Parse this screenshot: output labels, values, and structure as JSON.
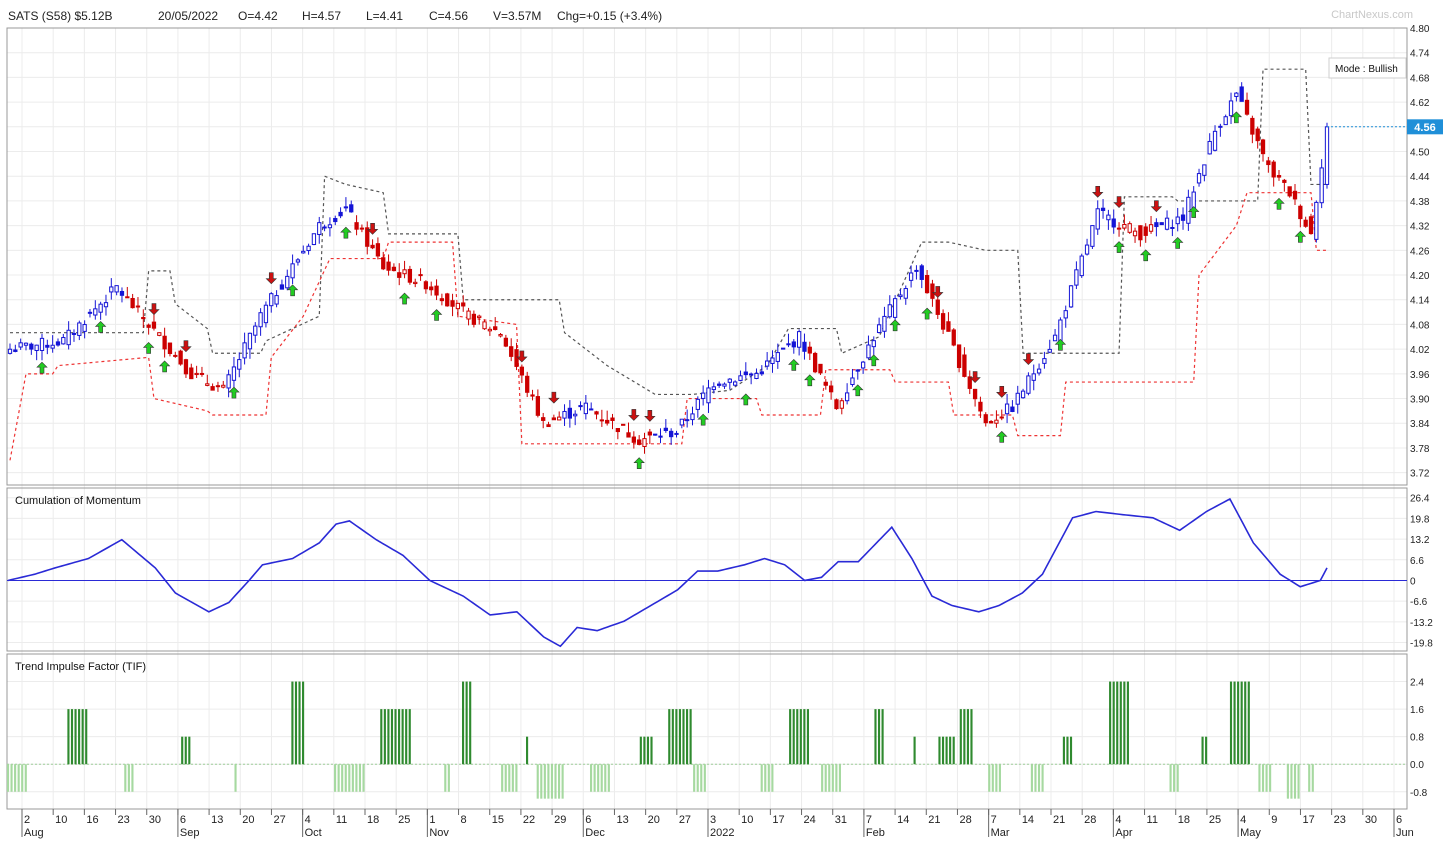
{
  "header": {
    "symbol": "SATS (S58) $5.12B",
    "date": "20/05/2022",
    "open": "O=4.42",
    "high": "H=4.57",
    "low": "L=4.41",
    "close": "C=4.56",
    "volume": "V=3.57M",
    "change": "Chg=+0.15 (+3.4%)",
    "brand": "ChartNexus.com"
  },
  "price_panel": {
    "mode_label": "Mode : Bullish",
    "last_price": "4.56",
    "y_ticks": [
      "4.80",
      "4.74",
      "4.68",
      "4.62",
      "4.56",
      "4.50",
      "4.44",
      "4.38",
      "4.32",
      "4.26",
      "4.20",
      "4.14",
      "4.08",
      "4.02",
      "3.96",
      "3.90",
      "3.84",
      "3.78",
      "3.72"
    ]
  },
  "momentum_panel": {
    "title": "Cumulation of Momentum",
    "y_ticks": [
      "26.4",
      "19.8",
      "13.2",
      "6.6",
      "0",
      "-6.6",
      "-13.2",
      "-19.8"
    ]
  },
  "tif_panel": {
    "title": "Trend Impulse Factor (TIF)",
    "y_ticks": [
      "2.4",
      "1.6",
      "0.8",
      "0.0",
      "-0.8"
    ]
  },
  "x_axis": {
    "day_labels": [
      "2",
      "10",
      "16",
      "23",
      "30",
      "6",
      "13",
      "20",
      "27",
      "4",
      "11",
      "18",
      "25",
      "1",
      "8",
      "15",
      "22",
      "29",
      "6",
      "13",
      "20",
      "27",
      "3",
      "10",
      "17",
      "24",
      "31",
      "7",
      "14",
      "21",
      "28",
      "7",
      "14",
      "21",
      "28",
      "4",
      "11",
      "18",
      "25",
      "4",
      "9",
      "17",
      "23",
      "30",
      "6"
    ],
    "month_labels": [
      "Aug",
      "Sep",
      "Oct",
      "Nov",
      "Dec",
      "2022",
      "Feb",
      "Mar",
      "Apr",
      "May",
      "Jun"
    ]
  },
  "colors": {
    "up_candle": "#1515d6",
    "down_candle": "#cc0000",
    "resistance_line": "#555555",
    "support_line": "#ee3333",
    "buy_arrow": "#22cc22",
    "sell_arrow": "#cc1111",
    "momentum_line": "#2a2ad6",
    "tif_positive": "#2f8a2f",
    "tif_negative": "#a6d9a0",
    "price_tag": "#1f8fd8"
  },
  "chart_data": {
    "type": "candlestick",
    "title": "SATS (S58) $5.12B",
    "date_range": [
      "2021-08-02",
      "2022-05-20"
    ],
    "price": {
      "ylim": [
        3.69,
        4.8
      ],
      "first_close": 4.02,
      "last_close": 4.56,
      "waypoints": [
        [
          0,
          4.02
        ],
        [
          10,
          4.04
        ],
        [
          20,
          4.17
        ],
        [
          26,
          4.08
        ],
        [
          34,
          3.96
        ],
        [
          40,
          3.92
        ],
        [
          47,
          4.1
        ],
        [
          52,
          4.2
        ],
        [
          58,
          4.32
        ],
        [
          63,
          4.36
        ],
        [
          70,
          4.22
        ],
        [
          78,
          4.18
        ],
        [
          86,
          4.1
        ],
        [
          92,
          4.06
        ],
        [
          100,
          3.84
        ],
        [
          108,
          3.88
        ],
        [
          118,
          3.8
        ],
        [
          125,
          3.82
        ],
        [
          132,
          3.94
        ],
        [
          140,
          3.96
        ],
        [
          148,
          4.05
        ],
        [
          155,
          3.88
        ],
        [
          162,
          4.05
        ],
        [
          170,
          4.22
        ],
        [
          176,
          4.05
        ],
        [
          183,
          3.84
        ],
        [
          188,
          3.88
        ],
        [
          196,
          4.05
        ],
        [
          204,
          4.35
        ],
        [
          212,
          4.3
        ],
        [
          220,
          4.34
        ],
        [
          226,
          4.55
        ],
        [
          230,
          4.64
        ],
        [
          236,
          4.46
        ],
        [
          240,
          4.4
        ],
        [
          244,
          4.3
        ],
        [
          247,
          4.56
        ]
      ],
      "resistance": [
        [
          0,
          4.06
        ],
        [
          25,
          4.06
        ],
        [
          26,
          4.21
        ],
        [
          30,
          4.21
        ],
        [
          31,
          4.13
        ],
        [
          37,
          4.07
        ],
        [
          38,
          4.01
        ],
        [
          47,
          4.01
        ],
        [
          48,
          4.04
        ],
        [
          58,
          4.1
        ],
        [
          59,
          4.44
        ],
        [
          63,
          4.42
        ],
        [
          70,
          4.4
        ],
        [
          71,
          4.3
        ],
        [
          84,
          4.3
        ],
        [
          85,
          4.14
        ],
        [
          103,
          4.14
        ],
        [
          104,
          4.06
        ],
        [
          112,
          3.98
        ],
        [
          121,
          3.91
        ],
        [
          128,
          3.91
        ],
        [
          135,
          3.92
        ],
        [
          142,
          3.98
        ],
        [
          146,
          4.07
        ],
        [
          155,
          4.07
        ],
        [
          156,
          4.01
        ],
        [
          163,
          4.05
        ],
        [
          171,
          4.28
        ],
        [
          176,
          4.28
        ],
        [
          183,
          4.26
        ],
        [
          189,
          4.26
        ],
        [
          190,
          4.01
        ],
        [
          208,
          4.01
        ],
        [
          209,
          4.39
        ],
        [
          218,
          4.39
        ],
        [
          219,
          4.38
        ],
        [
          234,
          4.38
        ],
        [
          235,
          4.7
        ],
        [
          243,
          4.7
        ],
        [
          244,
          4.42
        ],
        [
          247,
          4.42
        ]
      ],
      "support": [
        [
          0,
          3.75
        ],
        [
          3,
          3.96
        ],
        [
          8,
          3.96
        ],
        [
          9,
          3.98
        ],
        [
          26,
          4.0
        ],
        [
          27,
          3.9
        ],
        [
          37,
          3.87
        ],
        [
          38,
          3.86
        ],
        [
          48,
          3.86
        ],
        [
          49,
          4.0
        ],
        [
          55,
          4.1
        ],
        [
          60,
          4.24
        ],
        [
          70,
          4.24
        ],
        [
          71,
          4.28
        ],
        [
          83,
          4.28
        ],
        [
          84,
          4.1
        ],
        [
          95,
          4.08
        ],
        [
          96,
          3.79
        ],
        [
          113,
          3.79
        ],
        [
          114,
          3.79
        ],
        [
          126,
          3.79
        ],
        [
          127,
          3.9
        ],
        [
          140,
          3.9
        ],
        [
          141,
          3.86
        ],
        [
          152,
          3.86
        ],
        [
          153,
          3.97
        ],
        [
          165,
          3.97
        ],
        [
          166,
          3.94
        ],
        [
          176,
          3.94
        ],
        [
          177,
          3.86
        ],
        [
          188,
          3.86
        ],
        [
          189,
          3.81
        ],
        [
          197,
          3.81
        ],
        [
          198,
          3.94
        ],
        [
          222,
          3.94
        ],
        [
          223,
          4.2
        ],
        [
          230,
          4.32
        ],
        [
          232,
          4.4
        ],
        [
          244,
          4.4
        ],
        [
          245,
          4.26
        ],
        [
          247,
          4.26
        ]
      ],
      "buy_signals": [
        6,
        17,
        26,
        29,
        42,
        53,
        63,
        74,
        80,
        118,
        130,
        138,
        147,
        150,
        159,
        162,
        166,
        172,
        186,
        197,
        208,
        213,
        219,
        222,
        230,
        238,
        242
      ],
      "sell_signals": [
        27,
        33,
        49,
        68,
        96,
        102,
        117,
        120,
        174,
        181,
        186,
        191,
        204,
        208,
        215
      ]
    },
    "momentum": {
      "ylim": [
        -22.5,
        29.5
      ],
      "waypoints": [
        [
          0,
          0
        ],
        [
          8,
          2
        ],
        [
          14,
          4
        ],
        [
          24,
          7
        ],
        [
          34,
          13
        ],
        [
          44,
          4
        ],
        [
          50,
          -4
        ],
        [
          60,
          -10
        ],
        [
          66,
          -7
        ],
        [
          72,
          0
        ],
        [
          76,
          5
        ],
        [
          85,
          7
        ],
        [
          93,
          12
        ],
        [
          98,
          18
        ],
        [
          102,
          19
        ],
        [
          110,
          13
        ],
        [
          118,
          8
        ],
        [
          126,
          0
        ],
        [
          136,
          -5
        ],
        [
          144,
          -11
        ],
        [
          152,
          -10
        ],
        [
          160,
          -18
        ],
        [
          165,
          -21
        ],
        [
          170,
          -15
        ],
        [
          176,
          -16
        ],
        [
          184,
          -13
        ],
        [
          192,
          -8
        ],
        [
          200,
          -3
        ],
        [
          206,
          3
        ],
        [
          212,
          3
        ],
        [
          220,
          5
        ],
        [
          226,
          7
        ],
        [
          232,
          5
        ],
        [
          238,
          0
        ],
        [
          243,
          1
        ],
        [
          248,
          6
        ],
        [
          254,
          6
        ],
        [
          264,
          17
        ],
        [
          270,
          7
        ],
        [
          276,
          -5
        ],
        [
          282,
          -8
        ],
        [
          290,
          -10
        ],
        [
          296,
          -8
        ],
        [
          303,
          -4
        ],
        [
          309,
          2
        ],
        [
          318,
          20
        ],
        [
          325,
          22
        ],
        [
          333,
          21
        ],
        [
          342,
          20
        ],
        [
          350,
          16
        ],
        [
          358,
          22
        ],
        [
          365,
          26
        ],
        [
          372,
          12
        ],
        [
          380,
          2
        ],
        [
          386,
          -2
        ],
        [
          392,
          0
        ],
        [
          394,
          4
        ]
      ]
    },
    "tif": {
      "ylim": [
        -1.3,
        3.2
      ],
      "groups": [
        [
          0,
          6,
          -0.8
        ],
        [
          17,
          6,
          1.6
        ],
        [
          33,
          3,
          -0.8
        ],
        [
          49,
          3,
          0.8
        ],
        [
          64,
          1,
          -0.8
        ],
        [
          80,
          4,
          2.4
        ],
        [
          92,
          9,
          -0.8
        ],
        [
          105,
          9,
          1.6
        ],
        [
          123,
          2,
          -0.8
        ],
        [
          128,
          3,
          2.4
        ],
        [
          139,
          5,
          -0.8
        ],
        [
          146,
          1,
          0.8
        ],
        [
          149,
          8,
          -1.0
        ],
        [
          164,
          6,
          -0.8
        ],
        [
          178,
          4,
          0.8
        ],
        [
          186,
          7,
          1.6
        ],
        [
          193,
          4,
          -0.8
        ],
        [
          212,
          4,
          -0.8
        ],
        [
          220,
          6,
          1.6
        ],
        [
          229,
          6,
          -0.8
        ],
        [
          244,
          3,
          1.6
        ],
        [
          255,
          1,
          0.8
        ],
        [
          262,
          5,
          0.8
        ],
        [
          268,
          4,
          1.6
        ],
        [
          276,
          4,
          -0.8
        ],
        [
          288,
          4,
          -0.8
        ],
        [
          297,
          3,
          0.8
        ],
        [
          310,
          6,
          2.4
        ],
        [
          327,
          3,
          -0.8
        ],
        [
          336,
          2,
          0.8
        ],
        [
          344,
          6,
          2.4
        ],
        [
          352,
          4,
          -0.8
        ],
        [
          360,
          4,
          -1.0
        ],
        [
          366,
          2,
          -0.8
        ]
      ]
    }
  }
}
